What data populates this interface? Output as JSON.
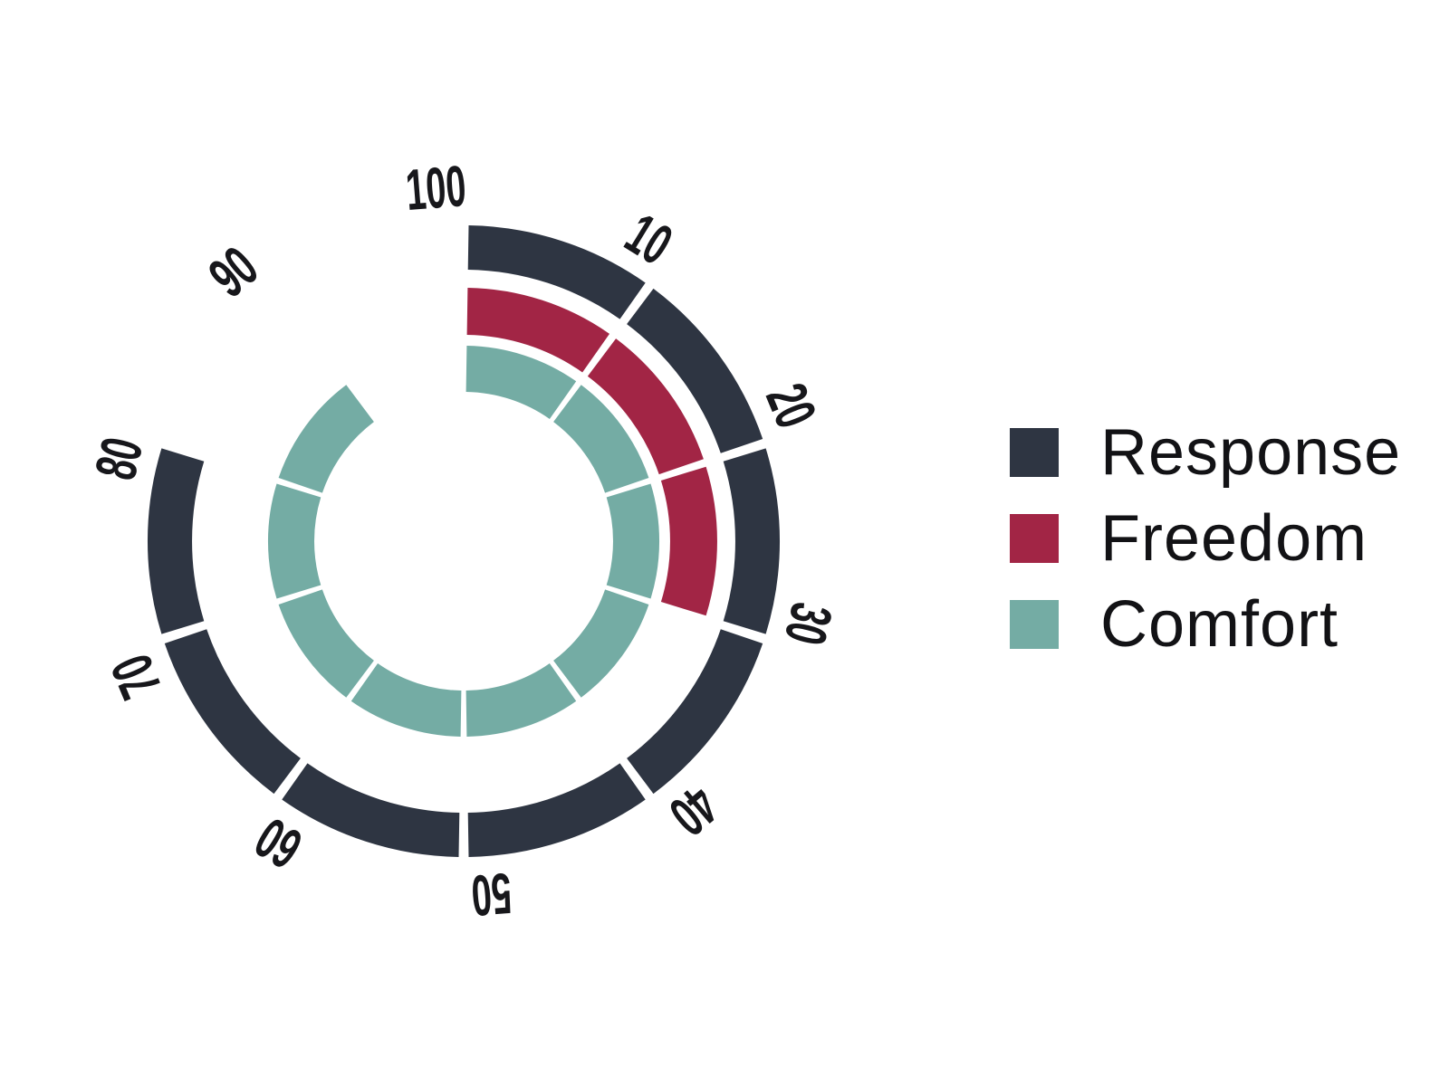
{
  "chart_data": {
    "type": "radial-bar",
    "title": "",
    "categories": [
      "Response",
      "Freedom",
      "Comfort"
    ],
    "series": [
      {
        "name": "Response",
        "value": 80,
        "color": "#2e3542"
      },
      {
        "name": "Freedom",
        "value": 30,
        "color": "#a22545"
      },
      {
        "name": "Comfort",
        "value": 90,
        "color": "#74aca4"
      }
    ],
    "scale": {
      "min": 0,
      "max": 100,
      "tick_step": 10,
      "tick_labels": [
        "10",
        "20",
        "30",
        "40",
        "50",
        "60",
        "70",
        "80",
        "90",
        "100"
      ]
    },
    "start_angle": "top",
    "direction": "clockwise",
    "segmented": true,
    "grid": false,
    "legend_position": "right",
    "tick_label_color": "#17171b",
    "background_color": "#ffffff"
  },
  "legend": {
    "items": [
      {
        "label": "Response",
        "color": "#2e3542"
      },
      {
        "label": "Freedom",
        "color": "#a22545"
      },
      {
        "label": "Comfort",
        "color": "#74aca4"
      }
    ]
  }
}
